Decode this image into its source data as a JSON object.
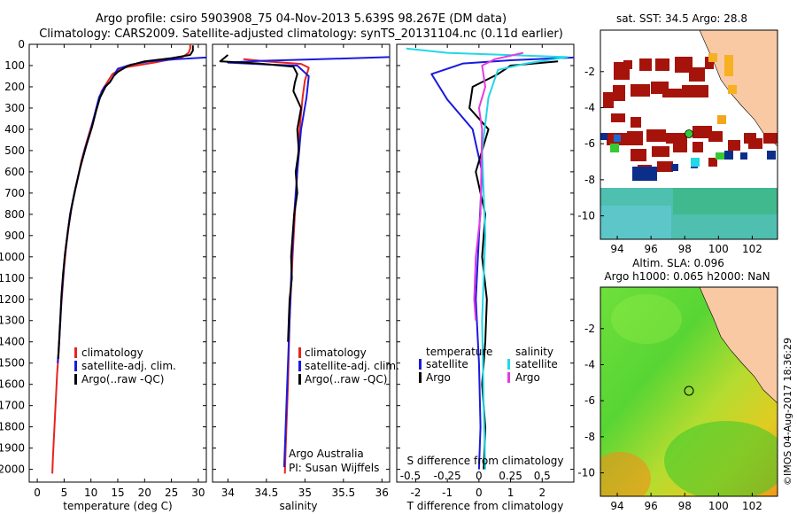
{
  "header": {
    "title_line1": "Argo profile: csiro 5903908_75 04-Nov-2013 5.639S 98.267E (DM data)",
    "title_line2": "Climatology: CARS2009. Satellite-adjusted climatology: synTS_20131104.nc (0.11d earlier)"
  },
  "colors": {
    "climatology": "#e8231e",
    "satellite": "#1a1adf",
    "argo": "#000000",
    "sal_satellite": "#22d8e6",
    "sal_argo": "#e23ce0",
    "land": "#f8c9a2",
    "sst_hot": "#a5130b",
    "sla_green": "#39c92b"
  },
  "chart_data": [
    {
      "name": "temperature-panel",
      "type": "line",
      "xlabel": "temperature (deg C)",
      "ylabel": "",
      "xlim": [
        -1.5,
        31.5
      ],
      "ylim": [
        2060,
        0
      ],
      "xticks": [
        0,
        5,
        10,
        15,
        20,
        25,
        30
      ],
      "yticks": [
        0,
        100,
        200,
        300,
        400,
        500,
        600,
        700,
        800,
        900,
        1000,
        1100,
        1200,
        1300,
        1400,
        1500,
        1600,
        1700,
        1800,
        1900,
        2000
      ],
      "legend": [
        "climatology",
        "satellite-adj. clim.",
        "Argo(..raw -QC)"
      ],
      "series": [
        {
          "name": "climatology",
          "color": "#e8231e",
          "points": [
            [
              28.5,
              0
            ],
            [
              28.5,
              20
            ],
            [
              28.2,
              40
            ],
            [
              27,
              60
            ],
            [
              22,
              85
            ],
            [
              16,
              110
            ],
            [
              14,
              140
            ],
            [
              13,
              180
            ],
            [
              12,
              220
            ],
            [
              11.3,
              280
            ],
            [
              10.5,
              350
            ],
            [
              9.3,
              450
            ],
            [
              8.2,
              550
            ],
            [
              7.4,
              650
            ],
            [
              6.5,
              750
            ],
            [
              5.9,
              850
            ],
            [
              5.4,
              950
            ],
            [
              5,
              1050
            ],
            [
              4.7,
              1150
            ],
            [
              4.4,
              1250
            ],
            [
              4.2,
              1350
            ],
            [
              4,
              1450
            ],
            [
              3.7,
              1550
            ],
            [
              3.5,
              1650
            ],
            [
              3.3,
              1750
            ],
            [
              3.1,
              1850
            ],
            [
              2.9,
              1950
            ],
            [
              2.8,
              2020
            ]
          ]
        },
        {
          "name": "satellite-adj. clim.",
          "color": "#1a1adf",
          "points": [
            [
              31.5,
              62
            ],
            [
              26,
              70
            ],
            [
              21,
              80
            ],
            [
              17.5,
              95
            ],
            [
              15,
              115
            ],
            [
              14.5,
              135
            ],
            [
              14,
              160
            ],
            [
              13.5,
              180
            ],
            [
              12.5,
              200
            ],
            [
              11.5,
              250
            ],
            [
              10.8,
              320
            ],
            [
              10,
              400
            ],
            [
              8.8,
              500
            ],
            [
              7.8,
              600
            ],
            [
              6.9,
              700
            ],
            [
              6.1,
              800
            ],
            [
              5.6,
              900
            ],
            [
              5.1,
              1000
            ],
            [
              4.8,
              1100
            ],
            [
              4.5,
              1200
            ],
            [
              4.3,
              1300
            ],
            [
              4.1,
              1400
            ],
            [
              3.8,
              1500
            ]
          ]
        },
        {
          "name": "Argo(..raw -QC)",
          "color": "#000000",
          "points": [
            [
              29,
              5
            ],
            [
              29,
              30
            ],
            [
              28.5,
              50
            ],
            [
              25,
              65
            ],
            [
              20,
              80
            ],
            [
              17,
              100
            ],
            [
              15,
              130
            ],
            [
              14.2,
              150
            ],
            [
              13.6,
              175
            ],
            [
              12.7,
              200
            ],
            [
              11.7,
              250
            ],
            [
              11,
              310
            ],
            [
              10.2,
              390
            ],
            [
              9.1,
              480
            ],
            [
              8,
              580
            ],
            [
              7.1,
              680
            ],
            [
              6.3,
              780
            ],
            [
              5.7,
              880
            ],
            [
              5.2,
              980
            ],
            [
              4.8,
              1080
            ],
            [
              4.5,
              1180
            ],
            [
              4.3,
              1280
            ],
            [
              4.1,
              1380
            ],
            [
              3.9,
              1480
            ]
          ]
        }
      ]
    },
    {
      "name": "salinity-panel",
      "type": "line",
      "xlabel": "salinity",
      "xlim": [
        33.8,
        36.1
      ],
      "ylim": [
        2060,
        0
      ],
      "xticks": [
        34,
        34.5,
        35,
        35.5,
        36
      ],
      "legend": [
        "climatology",
        "satellite-adj. clim.",
        "Argo(..raw -QC)"
      ],
      "annotations": [
        "Argo Australia",
        "PI: Susan Wijffels"
      ],
      "series": [
        {
          "name": "climatology",
          "color": "#e8231e",
          "points": [
            [
              34.2,
              70
            ],
            [
              34.5,
              80
            ],
            [
              34.95,
              92
            ],
            [
              35.05,
              110
            ],
            [
              35.0,
              170
            ],
            [
              34.97,
              250
            ],
            [
              34.93,
              400
            ],
            [
              34.9,
              600
            ],
            [
              34.87,
              800
            ],
            [
              34.84,
              1000
            ],
            [
              34.8,
              1300
            ],
            [
              34.78,
              1600
            ],
            [
              34.75,
              1900
            ],
            [
              34.74,
              2020
            ]
          ]
        },
        {
          "name": "satellite-adj. clim.",
          "color": "#1a1adf",
          "points": [
            [
              36.1,
              60
            ],
            [
              35.2,
              70
            ],
            [
              34.4,
              78
            ],
            [
              34.0,
              86
            ],
            [
              34.5,
              95
            ],
            [
              34.9,
              100
            ],
            [
              35.05,
              150
            ],
            [
              35.02,
              250
            ],
            [
              34.95,
              400
            ],
            [
              34.9,
              600
            ],
            [
              34.86,
              800
            ],
            [
              34.83,
              1000
            ],
            [
              34.8,
              1300
            ],
            [
              34.77,
              1600
            ],
            [
              34.74,
              1900
            ],
            [
              34.73,
              1990
            ]
          ]
        },
        {
          "name": "Argo(..raw -QC)",
          "color": "#000000",
          "points": [
            [
              34.0,
              50
            ],
            [
              33.9,
              80
            ],
            [
              34.4,
              90
            ],
            [
              34.85,
              105
            ],
            [
              34.9,
              140
            ],
            [
              34.87,
              180
            ],
            [
              34.85,
              220
            ],
            [
              34.95,
              300
            ],
            [
              34.9,
              400
            ],
            [
              34.92,
              500
            ],
            [
              34.88,
              600
            ],
            [
              34.9,
              700
            ],
            [
              34.86,
              800
            ],
            [
              34.84,
              900
            ],
            [
              34.82,
              1000
            ],
            [
              34.83,
              1100
            ],
            [
              34.8,
              1200
            ],
            [
              34.79,
              1300
            ],
            [
              34.78,
              1400
            ]
          ]
        }
      ]
    },
    {
      "name": "difference-panel",
      "type": "line",
      "xlabel": "T difference from climatology",
      "xlabel_top": "S difference from climatology",
      "xlim": [
        -2.6,
        3.0
      ],
      "ylim": [
        2060,
        0
      ],
      "xticks": [
        -2,
        -1,
        0,
        1,
        2
      ],
      "xticks_top": [
        "-0.5",
        "-0.25",
        "0",
        "0.25",
        "0.5"
      ],
      "legend_titles": [
        "temperature",
        "salinity"
      ],
      "legend": [
        "satellite",
        "Argo",
        "satellite",
        "Argo"
      ],
      "series": [
        {
          "name": "T satellite",
          "color": "#1a1adf",
          "points": [
            [
              3,
              62
            ],
            [
              1,
              75
            ],
            [
              -0.5,
              90
            ],
            [
              -1.5,
              140
            ],
            [
              -1,
              260
            ],
            [
              -0.2,
              400
            ],
            [
              0.1,
              600
            ],
            [
              0,
              900
            ],
            [
              -0.1,
              1200
            ],
            [
              0,
              1500
            ],
            [
              0.05,
              1800
            ],
            [
              0,
              2000
            ]
          ]
        },
        {
          "name": "T Argo",
          "color": "#000000",
          "points": [
            [
              2.5,
              80
            ],
            [
              1.0,
              100
            ],
            [
              0.6,
              140
            ],
            [
              -0.2,
              200
            ],
            [
              -0.3,
              300
            ],
            [
              0.3,
              400
            ],
            [
              -0.1,
              600
            ],
            [
              0.2,
              800
            ],
            [
              0.1,
              1000
            ],
            [
              0.25,
              1200
            ],
            [
              0.2,
              1400
            ],
            [
              0.1,
              1600
            ],
            [
              0.2,
              1800
            ],
            [
              0.15,
              2000
            ]
          ]
        },
        {
          "name": "S satellite",
          "color": "#22d8e6",
          "points": [
            [
              -2.3,
              20
            ],
            [
              -1.0,
              40
            ],
            [
              2.8,
              60
            ],
            [
              1.5,
              90
            ],
            [
              0.6,
              120
            ],
            [
              0.3,
              250
            ],
            [
              0.1,
              500
            ],
            [
              0.2,
              900
            ],
            [
              0.1,
              1300
            ],
            [
              0.15,
              1700
            ],
            [
              0.2,
              2000
            ]
          ]
        },
        {
          "name": "S Argo",
          "color": "#e23ce0",
          "points": [
            [
              1.4,
              40
            ],
            [
              0.5,
              70
            ],
            [
              0.1,
              100
            ],
            [
              0.2,
              200
            ],
            [
              0.0,
              300
            ],
            [
              0.1,
              400
            ],
            [
              0.05,
              800
            ],
            [
              -0.1,
              1000
            ],
            [
              -0.15,
              1200
            ],
            [
              -0.1,
              1300
            ]
          ]
        }
      ]
    },
    {
      "name": "sst-map",
      "type": "heatmap",
      "title": "sat. SST: 34.5  Argo: 28.8",
      "xticks": [
        94,
        96,
        98,
        100,
        102
      ],
      "yticks": [
        -2,
        -4,
        -6,
        -8,
        -10
      ],
      "xlim": [
        93,
        103.5
      ],
      "ylim": [
        -11.3,
        0.3
      ],
      "float_position": [
        98.267,
        -5.639
      ]
    },
    {
      "name": "sla-map",
      "type": "heatmap",
      "title_line1": "Altim. SLA: 0.096",
      "title_line2": "Argo h1000: 0.065 h2000: NaN",
      "xticks": [
        94,
        96,
        98,
        100,
        102
      ],
      "yticks": [
        -2,
        -4,
        -6,
        -8,
        -10
      ],
      "xlim": [
        93,
        103.5
      ],
      "ylim": [
        -11.3,
        0.3
      ],
      "float_position": [
        98.267,
        -5.639
      ]
    }
  ],
  "credit": "©IMOS 04-Aug-2017 18:36:29"
}
